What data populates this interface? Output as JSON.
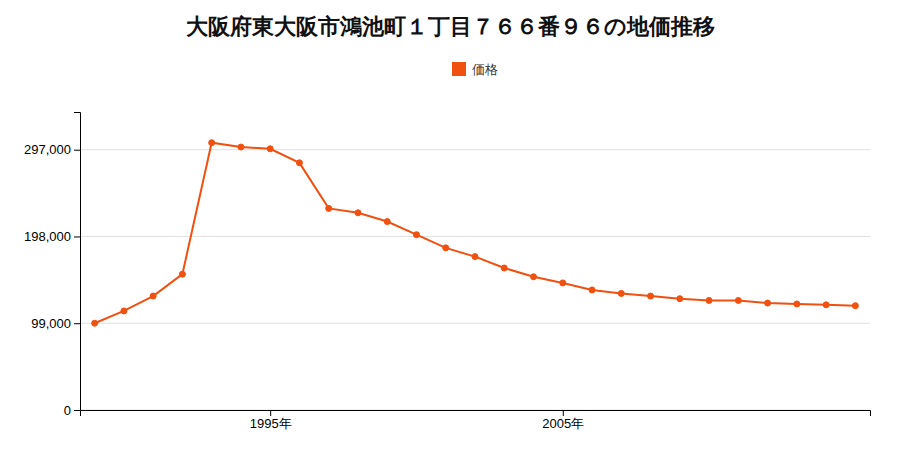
{
  "chart_data": {
    "type": "line",
    "title": "大阪府東大阪市鴻池町１丁目７６６番９６の地価推移",
    "x": [
      1989,
      1990,
      1991,
      1992,
      1993,
      1994,
      1995,
      1996,
      1997,
      1998,
      1999,
      2000,
      2001,
      2002,
      2003,
      2004,
      2005,
      2006,
      2007,
      2008,
      2009,
      2010,
      2011,
      2012,
      2013,
      2014,
      2015
    ],
    "series": [
      {
        "name": "価格",
        "color": "#f05010",
        "marker": "circle",
        "values": [
          99000,
          113000,
          130000,
          155000,
          305000,
          300000,
          298000,
          282000,
          230000,
          225000,
          215000,
          200000,
          185000,
          175000,
          162000,
          152000,
          145000,
          137000,
          133000,
          130000,
          127000,
          125000,
          125000,
          122000,
          121000,
          120000,
          119000
        ]
      }
    ],
    "xlim": [
      1988.5,
      2015.5
    ],
    "xticks": [
      {
        "value": 1995,
        "label": "1995年"
      },
      {
        "value": 2005,
        "label": "2005年"
      }
    ],
    "ylim": [
      0,
      340000
    ],
    "yticks": [
      0,
      {
        "value": 99000,
        "label": "99,000"
      },
      {
        "value": 198000,
        "label": "198,000"
      },
      {
        "value": 297000,
        "label": "297,000"
      }
    ],
    "grid": true,
    "legend": "top"
  }
}
